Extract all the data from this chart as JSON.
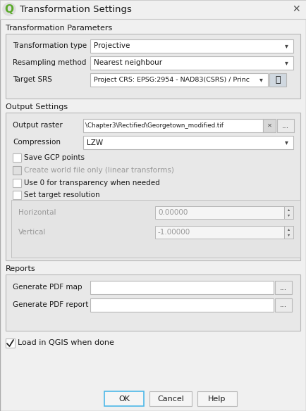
{
  "title": "Transformation Settings",
  "bg_color": "#f0f0f0",
  "white": "#ffffff",
  "panel_bg": "#ebebeb",
  "border_color": "#b8b8b8",
  "dark_border": "#888888",
  "text_color": "#1a1a1a",
  "disabled_text_color": "#999999",
  "section_header_color": "#1a1a1a",
  "ok_border": "#4eb8e8",
  "qgis_green": "#5aaa2a",
  "titlebar_bg": "#f0f0f0",
  "glob_bg": "#d0d8e0",
  "spinbox_bg": "#f5f5f5",
  "transform_type": "Projective",
  "resample_method": "Nearest neighbour",
  "target_srs": "Project CRS: EPSG:2954 - NAD83(CSRS) / Princ",
  "output_raster": "\\Chapter3\\Rectified\\Georgetown_modified.tif",
  "compression": "LZW",
  "horizontal_val": "0.00000",
  "vertical_val": "-1.00000",
  "load_label": "Load in QGIS when done",
  "buttons": [
    "OK",
    "Cancel",
    "Help"
  ]
}
